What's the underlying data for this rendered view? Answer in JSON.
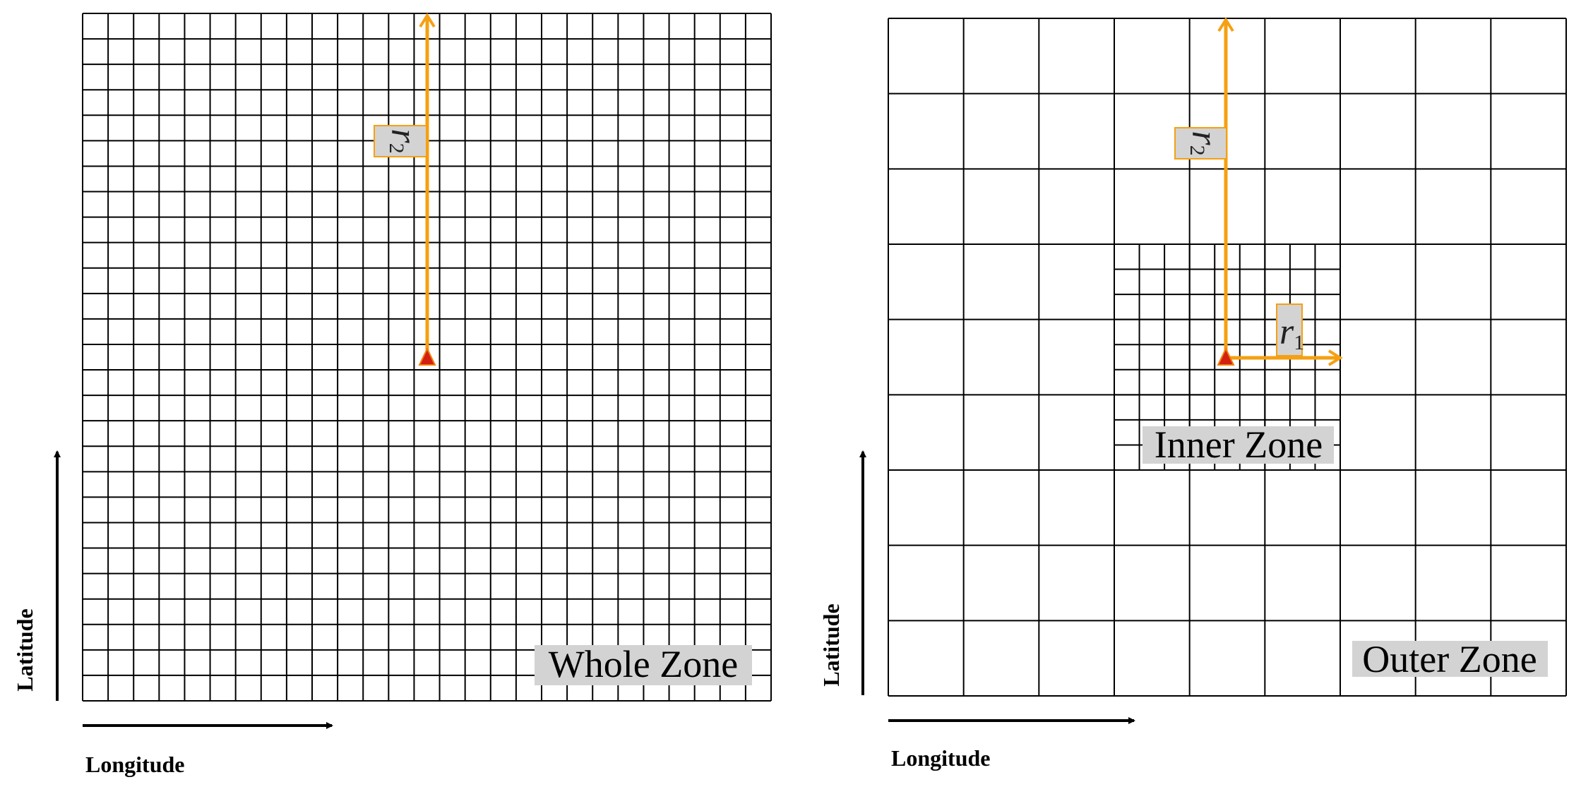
{
  "panels": [
    {
      "zone_label": "Whole Zone",
      "y_axis_label": "Latitude",
      "x_axis_label": "Longitude",
      "radius_label": {
        "symbol": "r",
        "subscript": "2"
      }
    },
    {
      "zone_label": "Outer Zone",
      "inner_zone_label": "Inner Zone",
      "y_axis_label": "Latitude",
      "x_axis_label": "Longitude",
      "outer_radius_label": {
        "symbol": "r",
        "subscript": "2"
      },
      "inner_radius_label": {
        "symbol": "r",
        "subscript": "1"
      }
    }
  ]
}
